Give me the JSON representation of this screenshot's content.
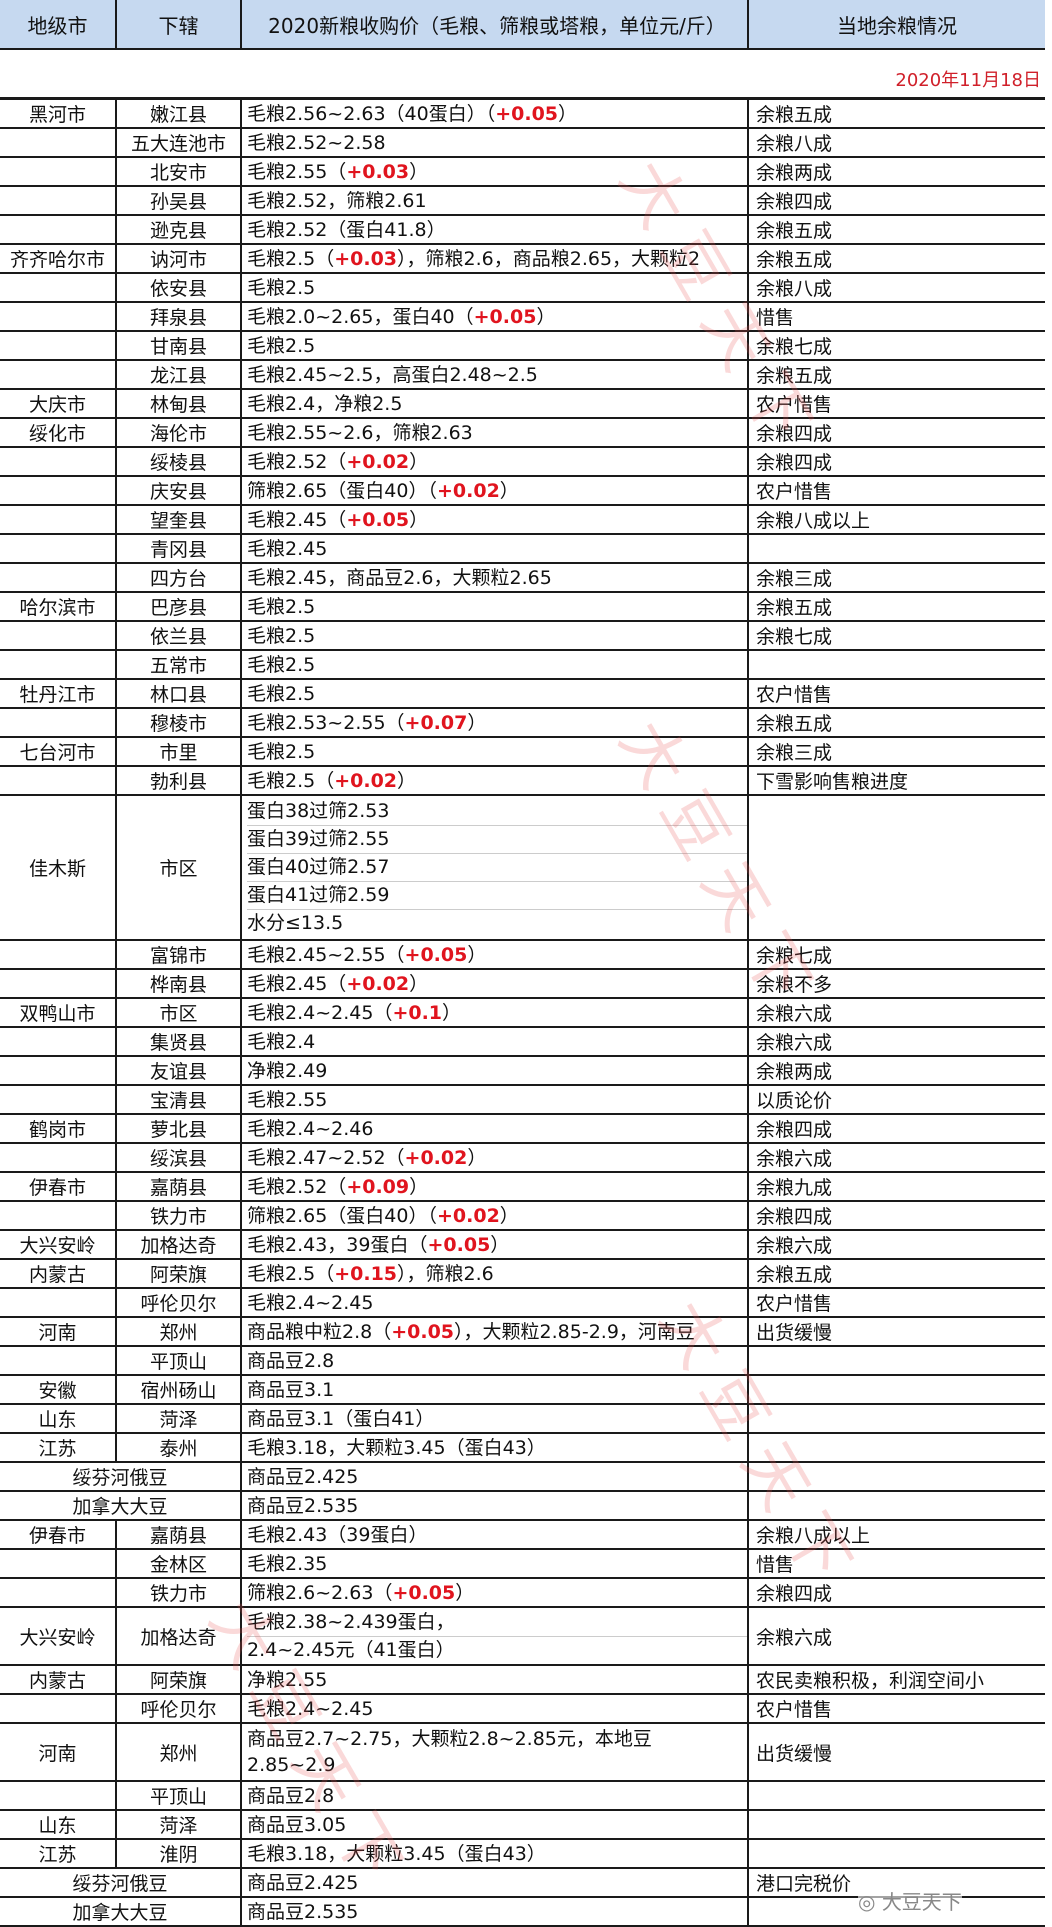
{
  "header": {
    "col1": "地级市",
    "col2": "下辖",
    "col3": "2020新粮收购价（毛粮、筛粮或塔粮，单位元/斤）",
    "col4": "当地余粮情况"
  },
  "date": "2020年11月18日",
  "colors": {
    "header_bg": "#c6d9f0",
    "increase_red": "#e0141e",
    "date_red": "#d0202a"
  },
  "rows": [
    {
      "city": "黑河市",
      "county": "嫩江县",
      "price": [
        [
          [
            "毛粮2.56~2.63（40蛋白）（",
            0
          ],
          [
            "+0.05",
            1
          ],
          [
            "）",
            0
          ]
        ]
      ],
      "surplus": "余粮五成"
    },
    {
      "city": "",
      "county": "五大连池市",
      "price": [
        [
          [
            "毛粮2.52~2.58",
            0
          ]
        ]
      ],
      "surplus": "余粮八成"
    },
    {
      "city": "",
      "county": "北安市",
      "price": [
        [
          [
            "毛粮2.55（",
            0
          ],
          [
            "+0.03",
            1
          ],
          [
            "）",
            0
          ]
        ]
      ],
      "surplus": "余粮两成"
    },
    {
      "city": "",
      "county": "孙吴县",
      "price": [
        [
          [
            "毛粮2.52，筛粮2.61",
            0
          ]
        ]
      ],
      "surplus": "余粮四成"
    },
    {
      "city": "",
      "county": "逊克县",
      "price": [
        [
          [
            "毛粮2.52（蛋白41.8）",
            0
          ]
        ]
      ],
      "surplus": "余粮五成"
    },
    {
      "city": "齐齐哈尔市",
      "county": "讷河市",
      "price": [
        [
          [
            "毛粮2.5（",
            0
          ],
          [
            "+0.03",
            1
          ],
          [
            "），筛粮2.6，商品粮2.65，大颗粒2",
            0
          ]
        ]
      ],
      "surplus": "余粮五成"
    },
    {
      "city": "",
      "county": "依安县",
      "price": [
        [
          [
            "毛粮2.5",
            0
          ]
        ]
      ],
      "surplus": "余粮八成"
    },
    {
      "city": "",
      "county": "拜泉县",
      "price": [
        [
          [
            "毛粮2.0~2.65，蛋白40（",
            0
          ],
          [
            "+0.05",
            1
          ],
          [
            "）",
            0
          ]
        ]
      ],
      "surplus": "惜售"
    },
    {
      "city": "",
      "county": "甘南县",
      "price": [
        [
          [
            "毛粮2.5",
            0
          ]
        ]
      ],
      "surplus": "余粮七成"
    },
    {
      "city": "",
      "county": "龙江县",
      "price": [
        [
          [
            "毛粮2.45~2.5，高蛋白2.48~2.5",
            0
          ]
        ]
      ],
      "surplus": "余粮五成"
    },
    {
      "city": "大庆市",
      "county": "林甸县",
      "price": [
        [
          [
            "毛粮2.4，净粮2.5",
            0
          ]
        ]
      ],
      "surplus": "农户惜售"
    },
    {
      "city": "绥化市",
      "county": "海伦市",
      "price": [
        [
          [
            "毛粮2.55~2.6，筛粮2.63",
            0
          ]
        ]
      ],
      "surplus": "余粮四成"
    },
    {
      "city": "",
      "county": "绥棱县",
      "price": [
        [
          [
            "毛粮2.52（",
            0
          ],
          [
            "+0.02",
            1
          ],
          [
            "）",
            0
          ]
        ]
      ],
      "surplus": "余粮四成"
    },
    {
      "city": "",
      "county": "庆安县",
      "price": [
        [
          [
            "筛粮2.65（蛋白40）（",
            0
          ],
          [
            "+0.02",
            1
          ],
          [
            "）",
            0
          ]
        ]
      ],
      "surplus": "农户惜售"
    },
    {
      "city": "",
      "county": "望奎县",
      "price": [
        [
          [
            "毛粮2.45（",
            0
          ],
          [
            "+0.05",
            1
          ],
          [
            "）",
            0
          ]
        ]
      ],
      "surplus": "余粮八成以上"
    },
    {
      "city": "",
      "county": "青冈县",
      "price": [
        [
          [
            "毛粮2.45",
            0
          ]
        ]
      ],
      "surplus": ""
    },
    {
      "city": "",
      "county": "四方台",
      "price": [
        [
          [
            "毛粮2.45，商品豆2.6，大颗粒2.65",
            0
          ]
        ]
      ],
      "surplus": "余粮三成"
    },
    {
      "city": "哈尔滨市",
      "county": "巴彦县",
      "price": [
        [
          [
            "毛粮2.5",
            0
          ]
        ]
      ],
      "surplus": "余粮五成"
    },
    {
      "city": "",
      "county": "依兰县",
      "price": [
        [
          [
            "毛粮2.5",
            0
          ]
        ]
      ],
      "surplus": "余粮七成"
    },
    {
      "city": "",
      "county": "五常市",
      "price": [
        [
          [
            "毛粮2.5",
            0
          ]
        ]
      ],
      "surplus": ""
    },
    {
      "city": "牡丹江市",
      "county": "林口县",
      "price": [
        [
          [
            "毛粮2.5",
            0
          ]
        ]
      ],
      "surplus": "农户惜售"
    },
    {
      "city": "",
      "county": "穆棱市",
      "price": [
        [
          [
            "毛粮2.53~2.55（",
            0
          ],
          [
            "+0.07",
            1
          ],
          [
            "）",
            0
          ]
        ]
      ],
      "surplus": "余粮五成"
    },
    {
      "city": "七台河市",
      "county": "市里",
      "price": [
        [
          [
            "毛粮2.5",
            0
          ]
        ]
      ],
      "surplus": "余粮三成"
    },
    {
      "city": "",
      "county": "勃利县",
      "price": [
        [
          [
            "毛粮2.5（",
            0
          ],
          [
            "+0.02",
            1
          ],
          [
            "）",
            0
          ]
        ]
      ],
      "surplus": "下雪影响售粮进度"
    },
    {
      "city": "佳木斯",
      "county": "市区",
      "sublines": true,
      "price": [
        [
          [
            "蛋白38过筛2.53",
            0
          ]
        ],
        [
          [
            "蛋白39过筛2.55",
            0
          ]
        ],
        [
          [
            "蛋白40过筛2.57",
            0
          ]
        ],
        [
          [
            "蛋白41过筛2.59",
            0
          ]
        ],
        [
          [
            "水分≤13.5",
            0
          ]
        ]
      ],
      "surplus": ""
    },
    {
      "city": "",
      "county": "富锦市",
      "price": [
        [
          [
            "毛粮2.45~2.55（",
            0
          ],
          [
            "+0.05",
            1
          ],
          [
            "）",
            0
          ]
        ]
      ],
      "surplus": "余粮七成"
    },
    {
      "city": "",
      "county": "桦南县",
      "price": [
        [
          [
            "毛粮2.45（",
            0
          ],
          [
            "+0.02",
            1
          ],
          [
            "）",
            0
          ]
        ]
      ],
      "surplus": "余粮不多"
    },
    {
      "city": "双鸭山市",
      "county": "市区",
      "price": [
        [
          [
            "毛粮2.4~2.45（",
            0
          ],
          [
            "+0.1",
            1
          ],
          [
            "）",
            0
          ]
        ]
      ],
      "surplus": "余粮六成"
    },
    {
      "city": "",
      "county": "集贤县",
      "price": [
        [
          [
            "毛粮2.4",
            0
          ]
        ]
      ],
      "surplus": "余粮六成"
    },
    {
      "city": "",
      "county": "友谊县",
      "price": [
        [
          [
            "净粮2.49",
            0
          ]
        ]
      ],
      "surplus": "余粮两成"
    },
    {
      "city": "",
      "county": "宝清县",
      "price": [
        [
          [
            "毛粮2.55",
            0
          ]
        ]
      ],
      "surplus": "以质论价"
    },
    {
      "city": "鹤岗市",
      "county": "萝北县",
      "price": [
        [
          [
            "毛粮2.4~2.46",
            0
          ]
        ]
      ],
      "surplus": "余粮四成"
    },
    {
      "city": "",
      "county": "绥滨县",
      "price": [
        [
          [
            "毛粮2.47~2.52（",
            0
          ],
          [
            "+0.02",
            1
          ],
          [
            "）",
            0
          ]
        ]
      ],
      "surplus": "余粮六成"
    },
    {
      "city": "伊春市",
      "county": "嘉荫县",
      "price": [
        [
          [
            "毛粮2.52（",
            0
          ],
          [
            "+0.09",
            1
          ],
          [
            "）",
            0
          ]
        ]
      ],
      "surplus": "余粮九成"
    },
    {
      "city": "",
      "county": "铁力市",
      "price": [
        [
          [
            "筛粮2.65（蛋白40）（",
            0
          ],
          [
            "+0.02",
            1
          ],
          [
            "）",
            0
          ]
        ]
      ],
      "surplus": "余粮四成"
    },
    {
      "city": "大兴安岭",
      "county": "加格达奇",
      "price": [
        [
          [
            "毛粮2.43，39蛋白（",
            0
          ],
          [
            "+0.05",
            1
          ],
          [
            "）",
            0
          ]
        ]
      ],
      "surplus": "余粮六成"
    },
    {
      "city": "内蒙古",
      "county": "阿荣旗",
      "price": [
        [
          [
            "毛粮2.5（",
            0
          ],
          [
            "+0.15",
            1
          ],
          [
            "），筛粮2.6",
            0
          ]
        ]
      ],
      "surplus": "余粮五成"
    },
    {
      "city": "",
      "county": "呼伦贝尔",
      "price": [
        [
          [
            "毛粮2.4~2.45",
            0
          ]
        ]
      ],
      "surplus": "农户惜售"
    },
    {
      "city": "河南",
      "county": "郑州",
      "price": [
        [
          [
            "商品粮中粒2.8（",
            0
          ],
          [
            "+0.05",
            1
          ],
          [
            "），大颗粒2.85-2.9，河南豆",
            0
          ]
        ]
      ],
      "surplus": "出货缓慢"
    },
    {
      "city": "",
      "county": "平顶山",
      "price": [
        [
          [
            "商品豆2.8",
            0
          ]
        ]
      ],
      "surplus": ""
    },
    {
      "city": "安徽",
      "county": "宿州砀山",
      "price": [
        [
          [
            "商品豆3.1",
            0
          ]
        ]
      ],
      "surplus": ""
    },
    {
      "city": "山东",
      "county": "菏泽",
      "price": [
        [
          [
            "商品豆3.1（蛋白41）",
            0
          ]
        ]
      ],
      "surplus": ""
    },
    {
      "city": "江苏",
      "county": "泰州",
      "price": [
        [
          [
            "毛粮3.18，大颗粒3.45（蛋白43）",
            0
          ]
        ]
      ],
      "surplus": ""
    },
    {
      "city": "绥芬河俄豆",
      "county": null,
      "price": [
        [
          [
            "商品豆2.425",
            0
          ]
        ]
      ],
      "surplus": ""
    },
    {
      "city": "加拿大大豆",
      "county": null,
      "price": [
        [
          [
            "商品豆2.535",
            0
          ]
        ]
      ],
      "surplus": ""
    },
    {
      "city": "伊春市",
      "county": "嘉荫县",
      "price": [
        [
          [
            "毛粮2.43（39蛋白）",
            0
          ]
        ]
      ],
      "surplus": "余粮八成以上"
    },
    {
      "city": "",
      "county": "金林区",
      "price": [
        [
          [
            "毛粮2.35",
            0
          ]
        ]
      ],
      "surplus": "惜售"
    },
    {
      "city": "",
      "county": "铁力市",
      "price": [
        [
          [
            "筛粮2.6~2.63（",
            0
          ],
          [
            "+0.05",
            1
          ],
          [
            "）",
            0
          ]
        ]
      ],
      "surplus": "余粮四成"
    },
    {
      "city": "大兴安岭",
      "county": "加格达奇",
      "sublines": true,
      "price": [
        [
          [
            "毛粮2.38~2.439蛋白，",
            0
          ]
        ],
        [
          [
            "2.4~2.45元（41蛋白）",
            0
          ]
        ]
      ],
      "surplus": "余粮六成"
    },
    {
      "city": "内蒙古",
      "county": "阿荣旗",
      "price": [
        [
          [
            "净粮2.55",
            0
          ]
        ]
      ],
      "surplus": "农民卖粮积极，利润空间小"
    },
    {
      "city": "",
      "county": "呼伦贝尔",
      "price": [
        [
          [
            "毛粮2.4~2.45",
            0
          ]
        ]
      ],
      "surplus": "农户惜售"
    },
    {
      "city": "河南",
      "county": "郑州",
      "price": [
        [
          [
            "商品豆2.7~2.75，大颗粒2.8~2.85元，本地豆",
            0
          ]
        ],
        [
          [
            "2.85~2.9",
            0
          ]
        ]
      ],
      "surplus": "出货缓慢"
    },
    {
      "city": "",
      "county": "平顶山",
      "price": [
        [
          [
            "商品豆2.8",
            0
          ]
        ]
      ],
      "surplus": ""
    },
    {
      "city": "山东",
      "county": "菏泽",
      "price": [
        [
          [
            "商品豆3.05",
            0
          ]
        ]
      ],
      "surplus": ""
    },
    {
      "city": "江苏",
      "county": "淮阴",
      "price": [
        [
          [
            "毛粮3.18，大颗粒3.45（蛋白43）",
            0
          ]
        ]
      ],
      "surplus": ""
    },
    {
      "city": "绥芬河俄豆",
      "county": null,
      "price": [
        [
          [
            "商品豆2.425",
            0
          ]
        ]
      ],
      "surplus": "港口完税价"
    },
    {
      "city": "加拿大大豆",
      "county": null,
      "price": [
        [
          [
            "商品豆2.535",
            0
          ]
        ]
      ],
      "surplus": ""
    }
  ],
  "watermark": "大豆天下",
  "logo": "大豆天下"
}
